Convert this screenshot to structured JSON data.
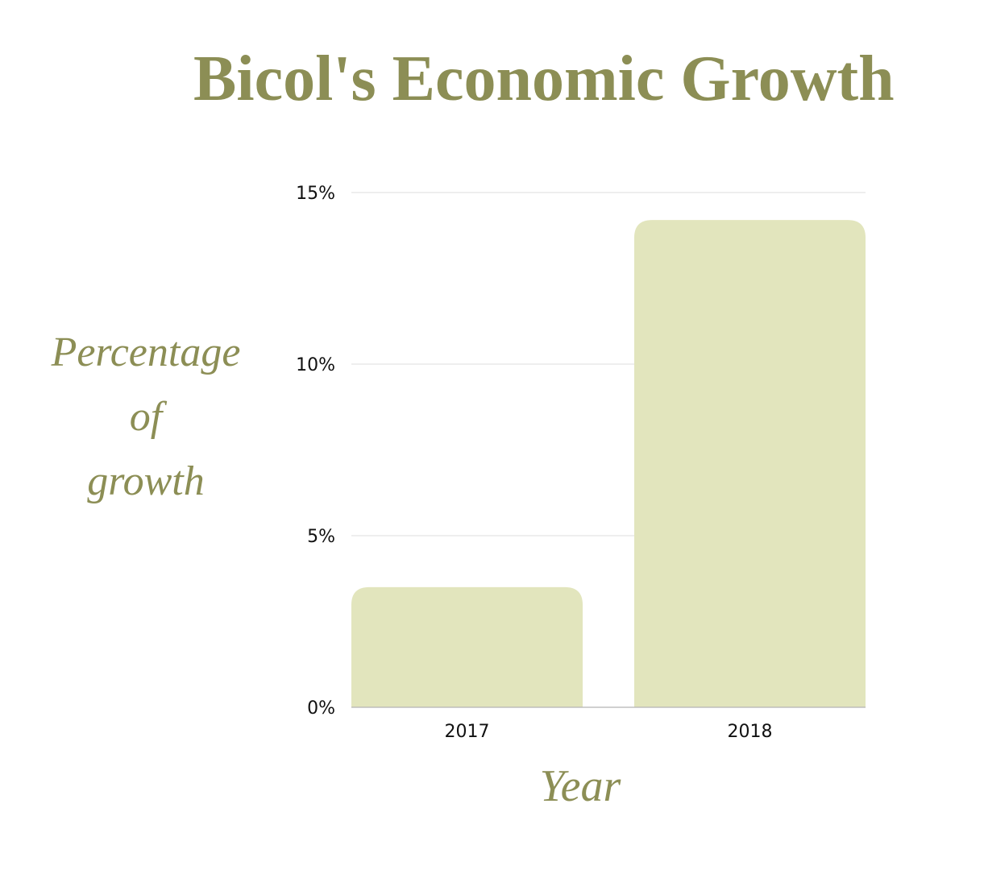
{
  "colors": {
    "title": "#8c8e55",
    "bar": "#e2e5bd",
    "grid": "#dedede",
    "baseline": "#b5b5b5",
    "tick_text": "#111111"
  },
  "chart_data": {
    "type": "bar",
    "title": "Bicol's Economic Growth",
    "ylabel_lines": [
      "Percentage",
      "of",
      "growth"
    ],
    "ylabel": "Percentage of growth",
    "xlabel": "Year",
    "categories": [
      "2017",
      "2018"
    ],
    "values": [
      3.5,
      14.2
    ],
    "yticks": [
      "0%",
      "5%",
      "10%",
      "15%"
    ],
    "ytick_values": [
      0,
      5,
      10,
      15
    ],
    "ylim": [
      0,
      15
    ],
    "grid": true,
    "legend": "none"
  }
}
